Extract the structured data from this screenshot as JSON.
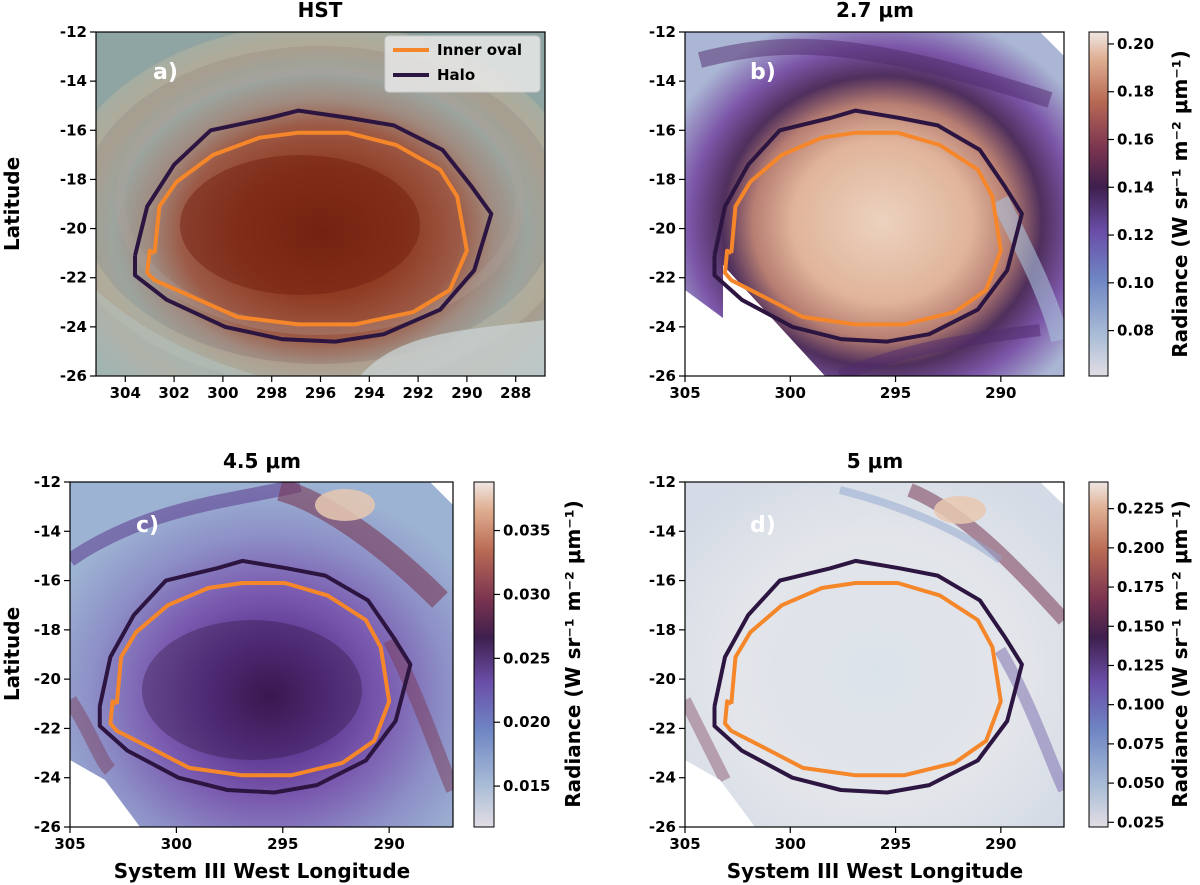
{
  "chart_data": [
    {
      "type": "image-map",
      "id": "hst",
      "title": "HST",
      "panel_label": "a)",
      "xlabel": "",
      "ylabel": "Latitude",
      "xlim": [
        305.2,
        286.8
      ],
      "ylim": [
        -26,
        -12
      ],
      "xticks": [
        304,
        302,
        300,
        298,
        296,
        294,
        292,
        290,
        288
      ],
      "yticks": [
        -12,
        -14,
        -16,
        -18,
        -20,
        -22,
        -24,
        -26
      ],
      "legend": {
        "position": "top-right",
        "entries": [
          {
            "name": "Inner oval",
            "color": "#f5872a"
          },
          {
            "name": "Halo",
            "color": "#2c1540"
          }
        ]
      },
      "colorbar": null
    },
    {
      "type": "heatmap",
      "id": "m27",
      "title": "2.7 μm",
      "panel_label": "b)",
      "xlabel": "",
      "ylabel": "",
      "xlim": [
        305,
        287
      ],
      "ylim": [
        -26,
        -12
      ],
      "xticks": [
        305,
        300,
        295,
        290
      ],
      "yticks": [
        -12,
        -14,
        -16,
        -18,
        -20,
        -22,
        -24,
        -26
      ],
      "colorbar": {
        "label": "Radiance (W sr⁻¹ m⁻² μm⁻¹)",
        "range": [
          0.061,
          0.205
        ],
        "ticks": [
          "0.08",
          "0.10",
          "0.12",
          "0.14",
          "0.16",
          "0.18",
          "0.20"
        ],
        "tick_values": [
          0.08,
          0.1,
          0.12,
          0.14,
          0.16,
          0.18,
          0.2
        ]
      }
    },
    {
      "type": "heatmap",
      "id": "m45",
      "title": "4.5 μm",
      "panel_label": "c)",
      "xlabel": "System III West Longitude",
      "ylabel": "Latitude",
      "xlim": [
        305,
        287
      ],
      "ylim": [
        -26,
        -12
      ],
      "xticks": [
        305,
        300,
        295,
        290
      ],
      "yticks": [
        -12,
        -14,
        -16,
        -18,
        -20,
        -22,
        -24,
        -26
      ],
      "colorbar": {
        "label": "Radiance (W sr⁻¹ m⁻² μm⁻¹)",
        "range": [
          0.0118,
          0.0388
        ],
        "ticks": [
          "0.015",
          "0.020",
          "0.025",
          "0.030",
          "0.035"
        ],
        "tick_values": [
          0.015,
          0.02,
          0.025,
          0.03,
          0.035
        ]
      }
    },
    {
      "type": "heatmap",
      "id": "m5",
      "title": "5 μm",
      "panel_label": "d)",
      "xlabel": "System III West Longitude",
      "ylabel": "",
      "xlim": [
        305,
        287
      ],
      "ylim": [
        -26,
        -12
      ],
      "xticks": [
        305,
        300,
        295,
        290
      ],
      "yticks": [
        -12,
        -14,
        -16,
        -18,
        -20,
        -22,
        -24,
        -26
      ],
      "colorbar": {
        "label": "Radiance (W sr⁻¹ m⁻² μm⁻¹)",
        "range": [
          0.022,
          0.242
        ],
        "ticks": [
          "0.025",
          "0.050",
          "0.075",
          "0.100",
          "0.125",
          "0.150",
          "0.175",
          "0.200",
          "0.225"
        ],
        "tick_values": [
          0.025,
          0.05,
          0.075,
          0.1,
          0.125,
          0.15,
          0.175,
          0.2,
          0.225
        ]
      }
    }
  ],
  "contours": {
    "inner_oval": {
      "name": "Inner oval",
      "color": "#f5872a",
      "lon": [
        302.8,
        302.6,
        301.9,
        300.4,
        298.5,
        296.9,
        294.9,
        292.9,
        291.1,
        290.4,
        290.0,
        290.7,
        292.2,
        294.6,
        296.9,
        299.4,
        301.2,
        302.8,
        303.1,
        303.0,
        302.8
      ],
      "lat": [
        -21.0,
        -19.1,
        -18.1,
        -17.0,
        -16.3,
        -16.1,
        -16.1,
        -16.6,
        -17.6,
        -18.7,
        -20.9,
        -22.5,
        -23.4,
        -23.9,
        -23.9,
        -23.6,
        -22.8,
        -22.1,
        -21.8,
        -20.9,
        -21.0
      ]
    },
    "halo": {
      "name": "Halo",
      "color": "#2c1540",
      "lon": [
        303.6,
        303.1,
        302.0,
        300.5,
        298.1,
        296.9,
        294.8,
        293.0,
        291.0,
        289.8,
        289.0,
        289.7,
        291.1,
        293.4,
        295.4,
        297.6,
        299.9,
        302.3,
        303.6,
        303.6
      ],
      "lat": [
        -21.1,
        -19.1,
        -17.4,
        -16.0,
        -15.5,
        -15.2,
        -15.5,
        -15.8,
        -16.8,
        -18.3,
        -19.4,
        -21.7,
        -23.3,
        -24.3,
        -24.6,
        -24.5,
        -24.0,
        -22.9,
        -21.9,
        -21.1
      ]
    }
  }
}
